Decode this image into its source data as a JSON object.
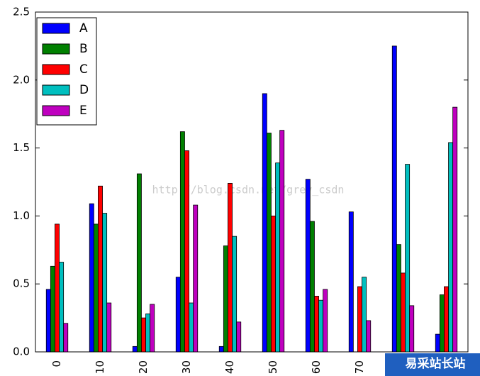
{
  "chart_data": {
    "type": "bar",
    "categories": [
      "0",
      "10",
      "20",
      "30",
      "40",
      "50",
      "60",
      "70",
      null,
      null
    ],
    "series": [
      {
        "name": "A",
        "color": "#0000ff",
        "values": [
          0.46,
          1.09,
          0.04,
          0.55,
          0.04,
          1.9,
          1.27,
          1.03,
          2.25,
          0.13
        ]
      },
      {
        "name": "B",
        "color": "#008000",
        "values": [
          0.63,
          0.94,
          1.31,
          1.62,
          0.78,
          1.61,
          0.96,
          0.0,
          0.79,
          0.42
        ]
      },
      {
        "name": "C",
        "color": "#ff0000",
        "values": [
          0.94,
          1.22,
          0.25,
          1.48,
          1.24,
          1.0,
          0.41,
          0.48,
          0.58,
          0.48
        ]
      },
      {
        "name": "D",
        "color": "#00bfbf",
        "values": [
          0.66,
          1.02,
          0.28,
          0.36,
          0.85,
          1.39,
          0.38,
          0.55,
          1.38,
          1.54
        ]
      },
      {
        "name": "E",
        "color": "#bf00bf",
        "values": [
          0.21,
          0.36,
          0.35,
          1.08,
          0.22,
          1.63,
          0.46,
          0.23,
          0.34,
          1.8
        ]
      }
    ],
    "ylim": [
      0,
      2.5
    ],
    "yticks": [
      {
        "value": 0,
        "label": "0.0"
      },
      0.5,
      {
        "value": 1,
        "label": "1.0"
      },
      1.5,
      {
        "value": 2,
        "label": "2.0"
      },
      2.5
    ],
    "grid": false,
    "legend": "upper left",
    "watermark": "http://blog.csdn.net/grey_csdn",
    "logo": "易采站长站"
  }
}
